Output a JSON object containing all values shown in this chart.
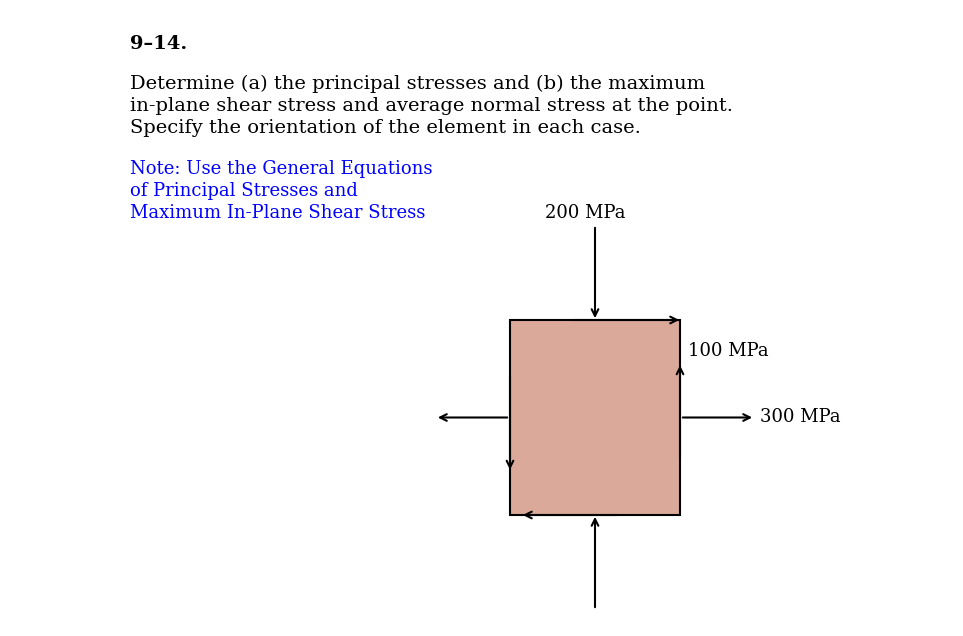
{
  "title": "9–14.",
  "problem_text_line1": "Determine (a) the principal stresses and (b) the maximum",
  "problem_text_line2": "in-plane shear stress and average normal stress at the point.",
  "problem_text_line3": "Specify the orientation of the element in each case.",
  "note_text_line1": "Note: Use the General Equations",
  "note_text_line2": "of Principal Stresses and",
  "note_text_line3": "Maximum In-Plane Shear Stress",
  "note_color": "#0000FF",
  "bg_color": "#FFFFFF",
  "box_fill_color": "#DBA99A",
  "stress_200": "200 MPa",
  "stress_100": "100 MPa",
  "stress_300": "300 MPa",
  "title_fontsize": 14,
  "body_fontsize": 14,
  "note_fontsize": 13,
  "label_fontsize": 13
}
